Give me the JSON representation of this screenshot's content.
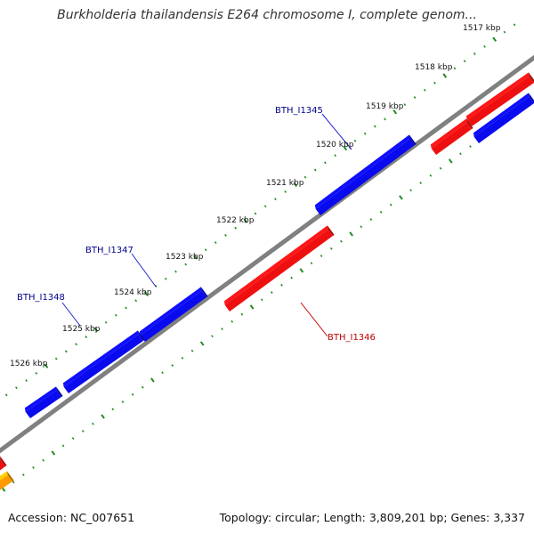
{
  "header": {
    "title": "Burkholderia thailandensis E264 chromosome I, complete genom..."
  },
  "footer": {
    "accession": "Accession: NC_007651",
    "summary": "Topology: circular; Length: 3,809,201 bp; Genes: 3,337"
  },
  "colors": {
    "backbone": "#808080",
    "forward_gene": "#0a0aee",
    "reverse_gene": "#ee1010",
    "other_feature": "#ff9900",
    "tick": "#228b22",
    "forward_label": "#00008b",
    "reverse_label": "#bb0000"
  },
  "diagram": {
    "kbp_labels": [
      "1517 kbp",
      "1518 kbp",
      "1519 kbp",
      "1520 kbp",
      "1521 kbp",
      "1522 kbp",
      "1523 kbp",
      "1524 kbp",
      "1525 kbp",
      "1526 kbp"
    ],
    "gene_labels": [
      {
        "text": "BTH_I1345",
        "strand": "forward"
      },
      {
        "text": "BTH_I1347",
        "strand": "forward"
      },
      {
        "text": "BTH_I1348",
        "strand": "forward"
      },
      {
        "text": "BTH_I1346",
        "strand": "reverse"
      }
    ]
  }
}
